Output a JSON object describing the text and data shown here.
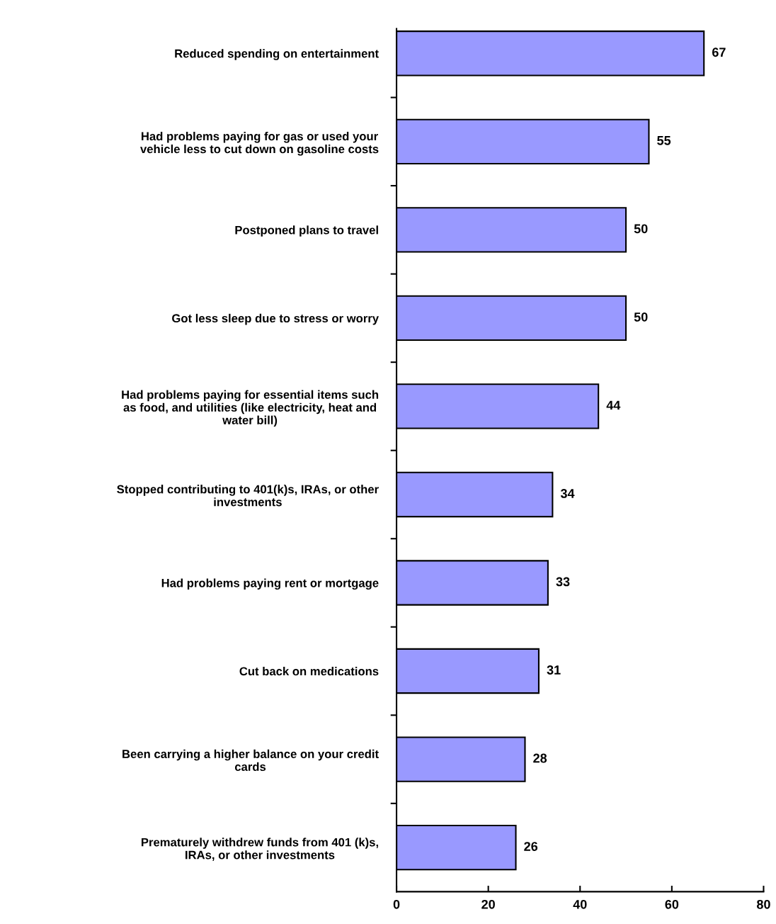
{
  "chart_data": {
    "type": "bar",
    "orientation": "horizontal",
    "categories": [
      "Reduced spending on entertainment",
      "Had problems paying for gas or used your\nvehicle less to cut down on gasoline costs",
      "Postponed plans to travel",
      "Got less sleep due to stress or worry",
      "Had problems paying for essential items such\nas food, and utilities (like electricity, heat and\nwater bill)",
      "Stopped contributing to 401(k)s, IRAs, or other\ninvestments",
      "Had problems paying rent or mortgage",
      "Cut back on medications",
      "Been carrying a higher balance on your credit\ncards",
      "Prematurely withdrew funds from 401 (k)s,\nIRAs, or other investments"
    ],
    "values": [
      67,
      55,
      50,
      50,
      44,
      34,
      33,
      31,
      28,
      26
    ],
    "color": "#9999ff",
    "xlim": [
      0,
      80
    ],
    "xticks": [
      0,
      20,
      40,
      60,
      80
    ],
    "data_labels": true,
    "grid": false,
    "legend": false
  }
}
